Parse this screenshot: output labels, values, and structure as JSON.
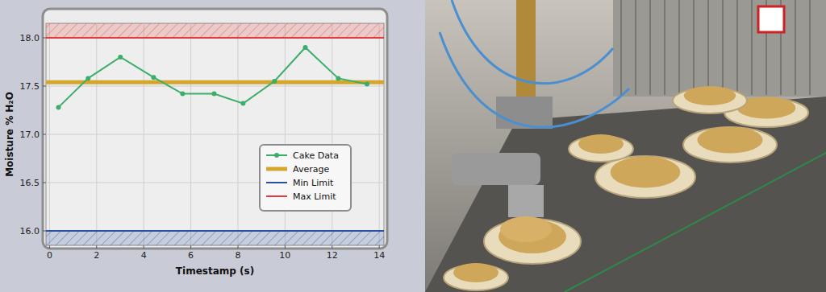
{
  "chart_data": {
    "type": "line",
    "x_label": "Timestamp (s)",
    "y_label": "Moisture % H₂O",
    "x": [
      0.38,
      1.64,
      3.01,
      4.42,
      5.65,
      6.99,
      8.22,
      9.55,
      10.86,
      12.26,
      13.48
    ],
    "series": [
      {
        "name": "Cake Data",
        "color": "#3dae6a",
        "marker": "circle",
        "values": [
          17.28,
          17.58,
          17.8,
          17.59,
          17.42,
          17.42,
          17.32,
          17.55,
          17.9,
          17.58,
          17.52
        ]
      }
    ],
    "reference_lines": [
      {
        "name": "Average",
        "color": "#d4a72c",
        "value": 17.54
      },
      {
        "name": "Min Limit",
        "color": "#2850a0",
        "value": 16.0
      },
      {
        "name": "Max Limit",
        "color": "#e23b3b",
        "value": 18.0
      }
    ],
    "xlim": [
      -0.15,
      14.2
    ],
    "xticks": [
      0,
      2,
      4,
      6,
      8,
      10,
      12,
      14
    ],
    "ylim": [
      15.85,
      18.15
    ],
    "yticks": [
      {
        "value": 16,
        "label": "16.0"
      },
      {
        "value": 16.5,
        "label": "16.5"
      },
      {
        "value": 17,
        "label": "17.0"
      },
      {
        "value": 17.5,
        "label": "17.5"
      },
      {
        "value": 18,
        "label": "18.0"
      }
    ],
    "grid": true,
    "legend": "lower right"
  }
}
